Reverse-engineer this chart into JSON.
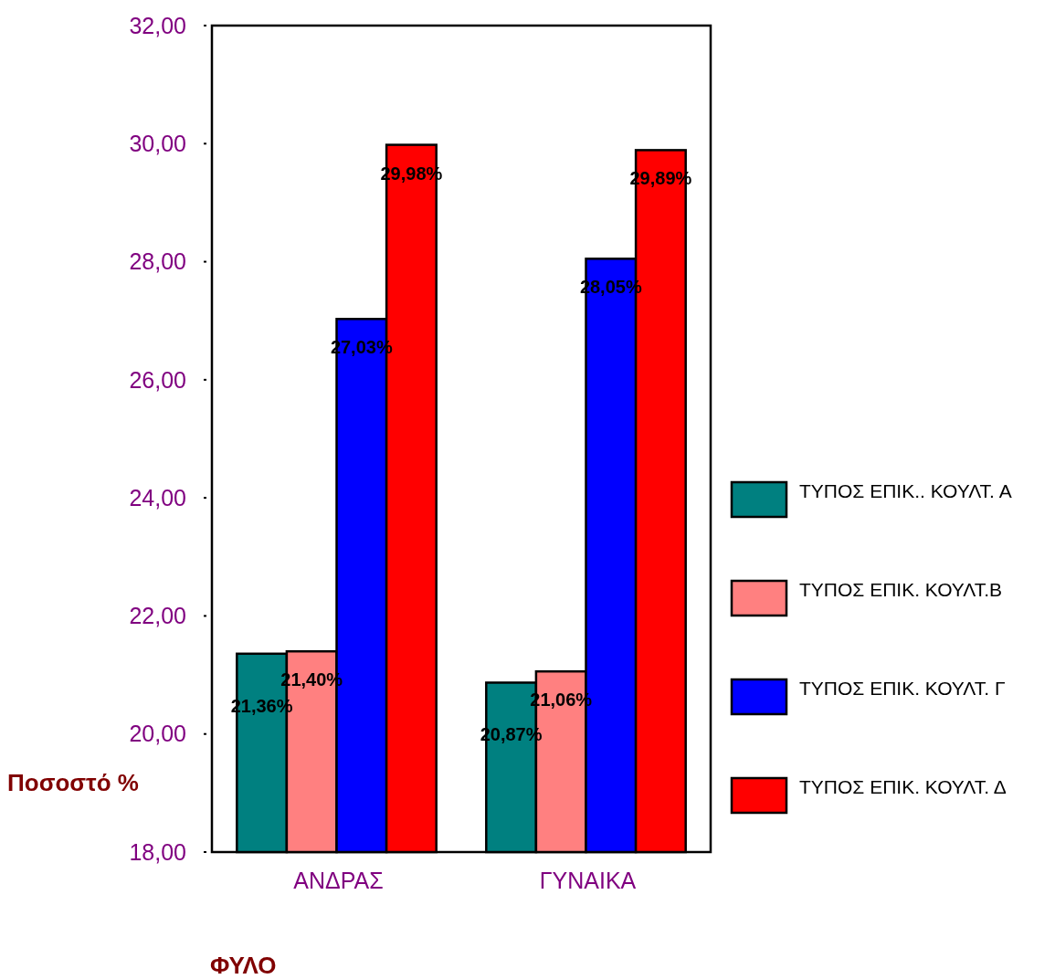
{
  "chart_data": {
    "type": "bar",
    "xlabel": "ΦΥΛΟ",
    "ylabel": "Ποσοστό %",
    "categories": [
      "ΑΝΔΡΑΣ",
      "ΓΥΝΑΙΚΑ"
    ],
    "series": [
      {
        "name": "ΤΥΠΟΣ ΕΠΙΚ.. ΚΟΥΛΤ. Α",
        "color": "#008080",
        "values": [
          21.36,
          20.87
        ],
        "value_labels": [
          "21,36%",
          "20,87%"
        ]
      },
      {
        "name": "ΤΥΠΟΣ ΕΠΙΚ. ΚΟΥΛΤ.Β",
        "color": "#ff8080",
        "values": [
          21.4,
          21.06
        ],
        "value_labels": [
          "21,40%",
          "21,06%"
        ]
      },
      {
        "name": "ΤΥΠΟΣ ΕΠΙΚ. ΚΟΥΛΤ. Γ",
        "color": "#0000ff",
        "values": [
          27.03,
          28.05
        ],
        "value_labels": [
          "27,03%",
          "28,05%"
        ]
      },
      {
        "name": "ΤΥΠΟΣ ΕΠΙΚ. ΚΟΥΛΤ. Δ",
        "color": "#ff0000",
        "values": [
          29.98,
          29.89
        ],
        "value_labels": [
          "29,98%",
          "29,89%"
        ]
      }
    ],
    "ylim": [
      18,
      32
    ],
    "yticks": [
      {
        "value": 18,
        "label": "18,00"
      },
      {
        "value": 20,
        "label": "20,00"
      },
      {
        "value": 22,
        "label": "22,00"
      },
      {
        "value": 24,
        "label": "24,00"
      },
      {
        "value": 26,
        "label": "26,00"
      },
      {
        "value": 28,
        "label": "28,00"
      },
      {
        "value": 30,
        "label": "30,00"
      },
      {
        "value": 32,
        "label": "32,00"
      }
    ],
    "legend": "right"
  }
}
